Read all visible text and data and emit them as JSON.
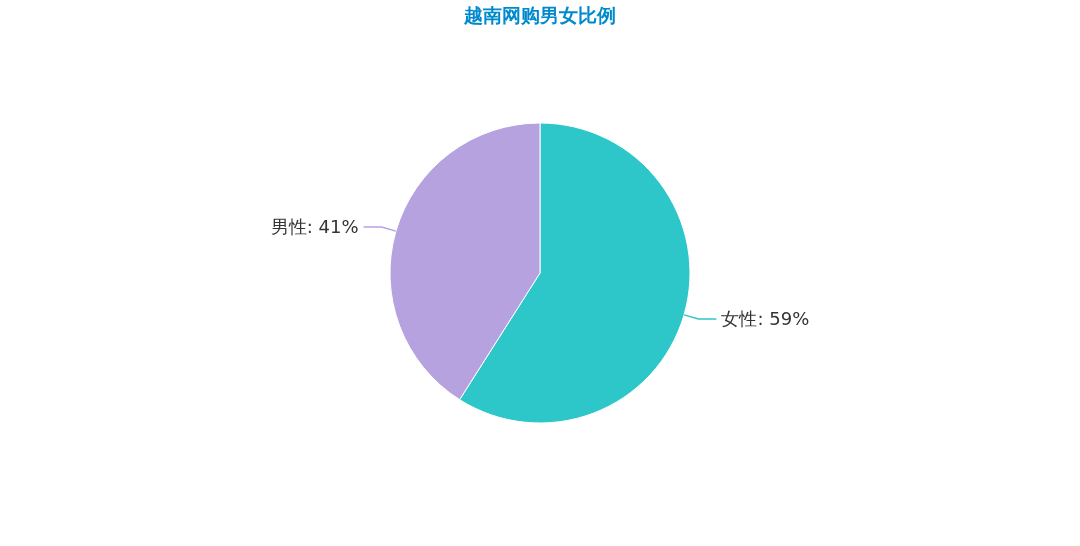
{
  "chart_data": {
    "type": "pie",
    "title": "越南网购男女比例",
    "categories": [
      "女性",
      "男性"
    ],
    "values": [
      59,
      41
    ],
    "value_labels": [
      "59%",
      "41%"
    ],
    "colors": [
      "#2ec7c9",
      "#b6a2de"
    ]
  }
}
